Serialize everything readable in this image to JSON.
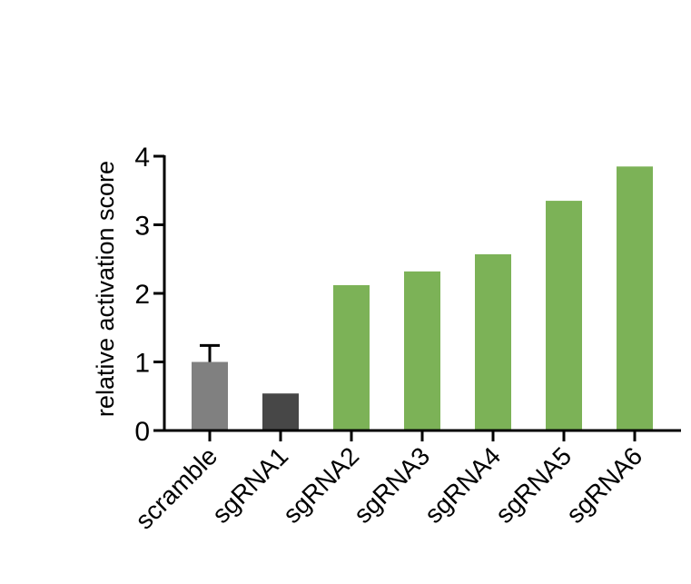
{
  "chart_data": {
    "type": "bar",
    "title": "",
    "xlabel": "",
    "ylabel": "relative activation score",
    "ylim": [
      0,
      4
    ],
    "yticks": [
      0,
      1,
      2,
      3,
      4
    ],
    "categories": [
      "scramble",
      "sgRNA1",
      "sgRNA2",
      "sgRNA3",
      "sgRNA4",
      "sgRNA5",
      "sgRNA6"
    ],
    "values": [
      1.0,
      0.54,
      2.12,
      2.32,
      2.57,
      3.35,
      3.85
    ],
    "error_bars": [
      0.24,
      null,
      null,
      null,
      null,
      null,
      null
    ],
    "colors": [
      "#808080",
      "#474747",
      "#7cb257",
      "#7cb257",
      "#7cb257",
      "#7cb257",
      "#7cb257"
    ],
    "grid": false,
    "legend": "none"
  }
}
